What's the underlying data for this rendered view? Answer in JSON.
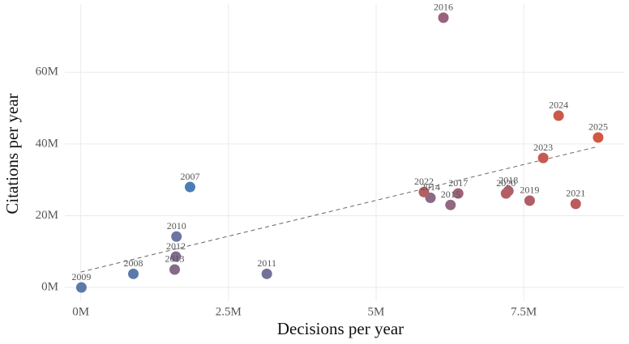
{
  "chart_data": {
    "type": "scatter",
    "xlabel": "Decisions per year",
    "ylabel": "Citations per year",
    "x": [
      1.85,
      0.89,
      0.01,
      1.62,
      3.15,
      1.61,
      1.59,
      5.92,
      6.26,
      6.14,
      6.39,
      7.24,
      7.6,
      7.2,
      8.38,
      5.81,
      7.83,
      8.09,
      8.76
    ],
    "y": [
      28.0,
      3.8,
      0.0,
      14.2,
      3.8,
      8.6,
      5.0,
      25.0,
      23.0,
      75.2,
      26.2,
      26.9,
      24.2,
      26.2,
      23.3,
      26.6,
      36.1,
      47.9,
      41.8
    ],
    "labels": [
      "2007",
      "2008",
      "2009",
      "2010",
      "2011",
      "2012",
      "2013",
      "2014",
      "2015",
      "2016",
      "2017",
      "2018",
      "2019",
      "2020",
      "2021",
      "2022",
      "2023",
      "2024",
      "2025"
    ],
    "colors": [
      "#4a7db3",
      "#5b7aab",
      "#5d79a9",
      "#6c76a2",
      "#737199",
      "#7e6d8f",
      "#866a89",
      "#8b6a88",
      "#936782",
      "#98637b",
      "#9f6277",
      "#a8606f",
      "#b05e68",
      "#b45e64",
      "#bd5b5a",
      "#b45f62",
      "#c55a51",
      "#cb5948",
      "#d2583f"
    ],
    "trendline": {
      "x": [
        0.0,
        8.76
      ],
      "y": [
        4.3,
        39.3
      ]
    },
    "xlim": [
      -0.27,
      9.2
    ],
    "ylim": [
      -3.8,
      79
    ],
    "xticks": [
      {
        "value": 0,
        "label": "0M"
      },
      {
        "value": 2.5,
        "label": "2.5M"
      },
      {
        "value": 5,
        "label": "5M"
      },
      {
        "value": 7.5,
        "label": "7.5M"
      }
    ],
    "yticks": [
      {
        "value": 0,
        "label": "0M"
      },
      {
        "value": 20,
        "label": "20M"
      },
      {
        "value": 40,
        "label": "40M"
      },
      {
        "value": 60,
        "label": "60M"
      }
    ],
    "grid": true
  }
}
